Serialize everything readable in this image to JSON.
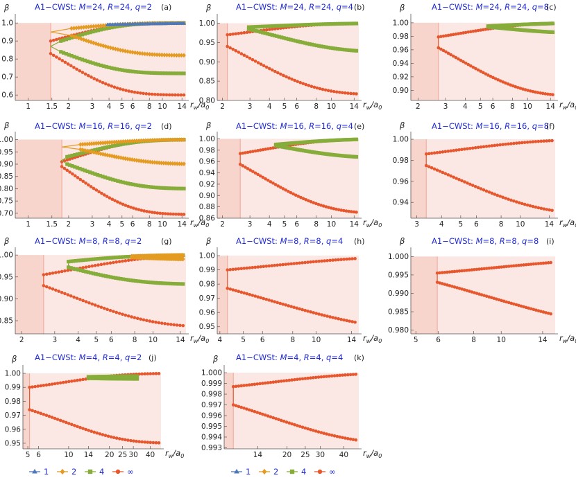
{
  "axis": {
    "ylabel": "β",
    "xlabel": "r",
    "xlabel_sub": "w",
    "xlabel_den": "/a",
    "xlabel_den_sub": "0"
  },
  "colors": {
    "shade": "#f7d4cc",
    "rline": "#f2a593",
    "q1": "#4e79b8",
    "q2": "#e39b22",
    "q4": "#86ad3a",
    "qinf": "#e6572e",
    "title": "#1f2ad6"
  },
  "legend": [
    {
      "label": "1",
      "key": "q1",
      "marker": "triangle"
    },
    {
      "label": "2",
      "key": "q2",
      "marker": "diamond"
    },
    {
      "label": "4",
      "key": "q4",
      "marker": "square"
    },
    {
      "label": "∞",
      "key": "qinf",
      "marker": "circle"
    }
  ],
  "chart_data": [
    {
      "type": "line",
      "tag": "(a)",
      "title_prefix": "A1−CWSt: ",
      "M": "24",
      "R": "24",
      "q": "2",
      "xscale": "log",
      "xlim": [
        0.8,
        15
      ],
      "ylim": [
        0.57,
        1.02
      ],
      "xticks": [
        1,
        1.5,
        2,
        3,
        4,
        5,
        6,
        8,
        10,
        14
      ],
      "yticks": [
        0.6,
        0.7,
        0.8,
        0.9,
        1.0
      ],
      "xtick_labels": [
        "1",
        "1.5",
        "2",
        "3",
        "4",
        "5",
        "6",
        "8",
        "10",
        "14"
      ],
      "ytick_labels": [
        "0.6",
        "0.7",
        "0.8",
        "0.9",
        "1.0"
      ],
      "rmin": 1.47,
      "series": [
        {
          "key": "qinf",
          "x0": 1.47,
          "lo": 0.6,
          "lt": 0.83,
          "ut": 0.9,
          "hi": 1.0,
          "tau": 2.2,
          "fork": 1.47
        },
        {
          "key": "q4",
          "x0": 1.75,
          "lo": 0.72,
          "lt": 0.84,
          "ut": 0.9,
          "hi": 1.0,
          "tau": 2.0,
          "fork": 1.47
        },
        {
          "key": "q2",
          "x0": 2.1,
          "lo": 0.82,
          "lt": 0.93,
          "ut": 0.97,
          "hi": 1.0,
          "tau": 2.0,
          "fork": 1.47
        },
        {
          "key": "q1",
          "x0": 3.9,
          "lo": 0.975,
          "lt": 0.99,
          "ut": 0.99,
          "hi": 1.0,
          "tau": 2.5,
          "upperOnly": true
        }
      ]
    },
    {
      "type": "line",
      "tag": "(b)",
      "title_prefix": "A1−CWSt: ",
      "M": "24",
      "R": "24",
      "q": "4",
      "xscale": "log",
      "xlim": [
        1.85,
        15
      ],
      "ylim": [
        0.8,
        1.01
      ],
      "xticks": [
        2,
        3,
        4,
        5,
        6,
        8,
        10,
        14
      ],
      "yticks": [
        0.8,
        0.85,
        0.9,
        0.95,
        1.0
      ],
      "xtick_labels": [
        "2",
        "3",
        "4",
        "5",
        "6",
        "8",
        "10",
        "14"
      ],
      "ytick_labels": [
        "0.80",
        "0.85",
        "0.90",
        "0.95",
        "1.00"
      ],
      "rmin": 2.15,
      "series": [
        {
          "key": "qinf",
          "x0": 2.15,
          "lo": 0.815,
          "lt": 0.94,
          "ut": 0.97,
          "hi": 1.0,
          "tau": 2.4
        },
        {
          "key": "q4",
          "x0": 2.95,
          "lo": 0.925,
          "lt": 0.985,
          "ut": 0.99,
          "hi": 1.0,
          "tau": 2.4
        }
      ]
    },
    {
      "type": "line",
      "tag": "(c)",
      "title_prefix": "A1−CWSt: ",
      "M": "24",
      "R": "24",
      "q": "8",
      "xscale": "log",
      "xlim": [
        1.8,
        15
      ],
      "ylim": [
        0.885,
        1.005
      ],
      "xticks": [
        2,
        3,
        4,
        5,
        6,
        8,
        10,
        14
      ],
      "yticks": [
        0.9,
        0.92,
        0.94,
        0.96,
        0.98,
        1.0
      ],
      "xtick_labels": [
        "2",
        "3",
        "4",
        "5",
        "6",
        "8",
        "10",
        "14"
      ],
      "ytick_labels": [
        "0.90",
        "0.92",
        "0.94",
        "0.96",
        "0.98",
        "1.00"
      ],
      "rmin": 2.7,
      "series": [
        {
          "key": "qinf",
          "x0": 2.7,
          "lo": 0.891,
          "lt": 0.963,
          "ut": 0.979,
          "hi": 1.0,
          "tau": 2.3
        },
        {
          "key": "q4",
          "x0": 5.6,
          "lo": 0.984,
          "lt": 0.994,
          "ut": 0.995,
          "hi": 1.0,
          "tau": 2.0
        }
      ]
    },
    {
      "type": "line",
      "tag": "(d)",
      "title_prefix": "A1−CWSt: ",
      "M": "16",
      "R": "16",
      "q": "2",
      "xscale": "log",
      "xlim": [
        0.8,
        15
      ],
      "ylim": [
        0.68,
        1.01
      ],
      "xticks": [
        1,
        1.5,
        2,
        3,
        4,
        5,
        6,
        8,
        10,
        14
      ],
      "yticks": [
        0.7,
        0.75,
        0.8,
        0.85,
        0.9,
        0.95,
        1.0
      ],
      "xtick_labels": [
        "1",
        "1.5",
        "2",
        "3",
        "4",
        "5",
        "6",
        "8",
        "10",
        "14"
      ],
      "ytick_labels": [
        "0.70",
        "0.75",
        "0.80",
        "0.85",
        "0.90",
        "0.95",
        "1.00"
      ],
      "rmin": 1.78,
      "series": [
        {
          "key": "qinf",
          "x0": 1.78,
          "lo": 0.695,
          "lt": 0.89,
          "ut": 0.91,
          "hi": 1.0,
          "tau": 2.2
        },
        {
          "key": "q4",
          "x0": 1.95,
          "lo": 0.8,
          "lt": 0.9,
          "ut": 0.93,
          "hi": 1.0,
          "tau": 2.2,
          "fork": 1.78
        },
        {
          "key": "q2",
          "x0": 2.45,
          "lo": 0.9,
          "lt": 0.96,
          "ut": 0.98,
          "hi": 1.0,
          "tau": 2.2,
          "fork": 1.78
        }
      ]
    },
    {
      "type": "line",
      "tag": "(e)",
      "title_prefix": "A1−CWSt: ",
      "M": "16",
      "R": "16",
      "q": "4",
      "xscale": "log",
      "xlim": [
        1.85,
        15
      ],
      "ylim": [
        0.86,
        1.003
      ],
      "xticks": [
        2,
        3,
        4,
        5,
        6,
        8,
        10,
        14
      ],
      "yticks": [
        0.86,
        0.88,
        0.9,
        0.92,
        0.94,
        0.96,
        0.98,
        1.0
      ],
      "xtick_labels": [
        "2",
        "3",
        "4",
        "5",
        "6",
        "8",
        "10",
        "14"
      ],
      "ytick_labels": [
        "0.86",
        "0.88",
        "0.90",
        "0.92",
        "0.94",
        "0.96",
        "0.98",
        "1.00"
      ],
      "rmin": 2.6,
      "series": [
        {
          "key": "qinf",
          "x0": 2.6,
          "lo": 0.868,
          "lt": 0.955,
          "ut": 0.974,
          "hi": 1.0,
          "tau": 2.3
        },
        {
          "key": "q4",
          "x0": 4.4,
          "lo": 0.966,
          "lt": 0.988,
          "ut": 0.99,
          "hi": 1.0,
          "tau": 2.0
        }
      ]
    },
    {
      "type": "line",
      "tag": "(f)",
      "title_prefix": "A1−CWSt: ",
      "M": "16",
      "R": "16",
      "q": "8",
      "xscale": "log",
      "xlim": [
        2.8,
        15
      ],
      "ylim": [
        0.925,
        1.002
      ],
      "xticks": [
        3,
        4,
        5,
        6,
        8,
        10,
        14
      ],
      "yticks": [
        0.94,
        0.96,
        0.98,
        1.0
      ],
      "xtick_labels": [
        "3",
        "4",
        "5",
        "6",
        "8",
        "10",
        "14"
      ],
      "ytick_labels": [
        "0.94",
        "0.96",
        "0.98",
        "1.00"
      ],
      "rmin": 3.35,
      "series": [
        {
          "key": "qinf",
          "x0": 3.35,
          "lo": 0.928,
          "lt": 0.975,
          "ut": 0.986,
          "hi": 1.0,
          "tau": 2.4
        }
      ]
    },
    {
      "type": "line",
      "tag": "(g)",
      "title_prefix": "A1−CWSt: ",
      "M": "8",
      "R": "8",
      "q": "2",
      "xscale": "log",
      "xlim": [
        1.85,
        15
      ],
      "ylim": [
        0.82,
        1.005
      ],
      "xticks": [
        2,
        3,
        4,
        5,
        6,
        8,
        10,
        14
      ],
      "yticks": [
        0.85,
        0.9,
        0.95,
        1.0
      ],
      "xtick_labels": [
        "2",
        "3",
        "4",
        "5",
        "6",
        "8",
        "10",
        "14"
      ],
      "ytick_labels": [
        "0.85",
        "0.90",
        "0.95",
        "1.00"
      ],
      "rmin": 2.62,
      "series": [
        {
          "key": "qinf",
          "x0": 2.62,
          "lo": 0.835,
          "lt": 0.93,
          "ut": 0.955,
          "hi": 1.0,
          "tau": 2.4
        },
        {
          "key": "q4",
          "x0": 3.55,
          "lo": 0.933,
          "lt": 0.972,
          "ut": 0.985,
          "hi": 1.0,
          "tau": 1.8
        },
        {
          "key": "q2",
          "x0": 7.7,
          "lo": 0.99,
          "lt": 0.995,
          "ut": 0.997,
          "hi": 1.0,
          "tau": 1.5
        }
      ]
    },
    {
      "type": "line",
      "tag": "(h)",
      "title_prefix": "A1−CWSt: ",
      "M": "8",
      "R": "8",
      "q": "4",
      "xscale": "log",
      "xlim": [
        3.9,
        15
      ],
      "ylim": [
        0.945,
        1.002
      ],
      "xticks": [
        4,
        5,
        6,
        8,
        10,
        14
      ],
      "yticks": [
        0.95,
        0.96,
        0.97,
        0.98,
        0.99,
        1.0
      ],
      "xtick_labels": [
        "4",
        "5",
        "6",
        "8",
        "10",
        "14"
      ],
      "ytick_labels": [
        "0.95",
        "0.96",
        "0.97",
        "0.98",
        "0.99",
        "1.00"
      ],
      "rmin": 4.3,
      "series": [
        {
          "key": "qinf",
          "x0": 4.3,
          "lo": 0.947,
          "lt": 0.977,
          "ut": 0.99,
          "hi": 1.0,
          "tau": 2.5
        }
      ]
    },
    {
      "type": "line",
      "tag": "(i)",
      "title_prefix": "A1−CWSt: ",
      "M": "8",
      "R": "8",
      "q": "8",
      "xscale": "log",
      "xlim": [
        4.8,
        15.5
      ],
      "ylim": [
        0.979,
        1.001
      ],
      "xticks": [
        5,
        6,
        8,
        10,
        14
      ],
      "yticks": [
        0.98,
        0.985,
        0.99,
        0.995,
        1.0
      ],
      "xtick_labels": [
        "5",
        "6",
        "8",
        "10",
        "14"
      ],
      "ytick_labels": [
        "0.980",
        "0.985",
        "0.990",
        "0.995",
        "1.000"
      ],
      "rmin": 5.95,
      "series": [
        {
          "key": "qinf",
          "x0": 5.95,
          "lo": 0.9795,
          "lt": 0.993,
          "ut": 0.9955,
          "hi": 1.0,
          "tau": 2.5
        }
      ]
    },
    {
      "type": "line",
      "tag": "(j)",
      "title_prefix": "A1−CWSt: ",
      "M": "4",
      "R": "4",
      "q": "2",
      "xscale": "log",
      "xlim": [
        4.6,
        48
      ],
      "ylim": [
        0.946,
        1.002
      ],
      "xticks": [
        5,
        6,
        10,
        14,
        20,
        25,
        30,
        40
      ],
      "yticks": [
        0.95,
        0.96,
        0.97,
        0.98,
        0.99,
        1.0
      ],
      "xtick_labels": [
        "5",
        "6",
        "10",
        "14",
        "20",
        "25",
        "30",
        "40"
      ],
      "ytick_labels": [
        "0.95",
        "0.96",
        "0.97",
        "0.98",
        "0.99",
        "1.00"
      ],
      "rmin": 5.15,
      "series": [
        {
          "key": "qinf",
          "x0": 5.15,
          "lo": 0.95,
          "lt": 0.974,
          "ut": 0.99,
          "hi": 1.0,
          "tau": 2.8
        },
        {
          "key": "q4",
          "x0": 14,
          "lo": 0.996,
          "lt": 0.9965,
          "ut": 0.9975,
          "hi": 0.998,
          "tau": 1.5,
          "flat": 32
        }
      ]
    },
    {
      "type": "line",
      "tag": "(k)",
      "title_prefix": "A1−CWSt: ",
      "M": "4",
      "R": "4",
      "q": "4",
      "xscale": "log",
      "xlim": [
        9.3,
        48
      ],
      "ylim": [
        0.9929,
        1.0002
      ],
      "xticks": [
        14,
        20,
        25,
        30,
        40
      ],
      "yticks": [
        0.993,
        0.994,
        0.995,
        0.996,
        0.997,
        0.998,
        0.999,
        1.0
      ],
      "xtick_labels": [
        "14",
        "20",
        "25",
        "30",
        "40"
      ],
      "ytick_labels": [
        "0.993",
        "0.994",
        "0.995",
        "0.996",
        "0.997",
        "0.998",
        "0.999",
        "1.000"
      ],
      "rmin": 10.4,
      "series": [
        {
          "key": "qinf",
          "x0": 10.4,
          "lo": 0.9933,
          "lt": 0.997,
          "ut": 0.9987,
          "hi": 1.0,
          "tau": 2.6
        }
      ]
    }
  ]
}
